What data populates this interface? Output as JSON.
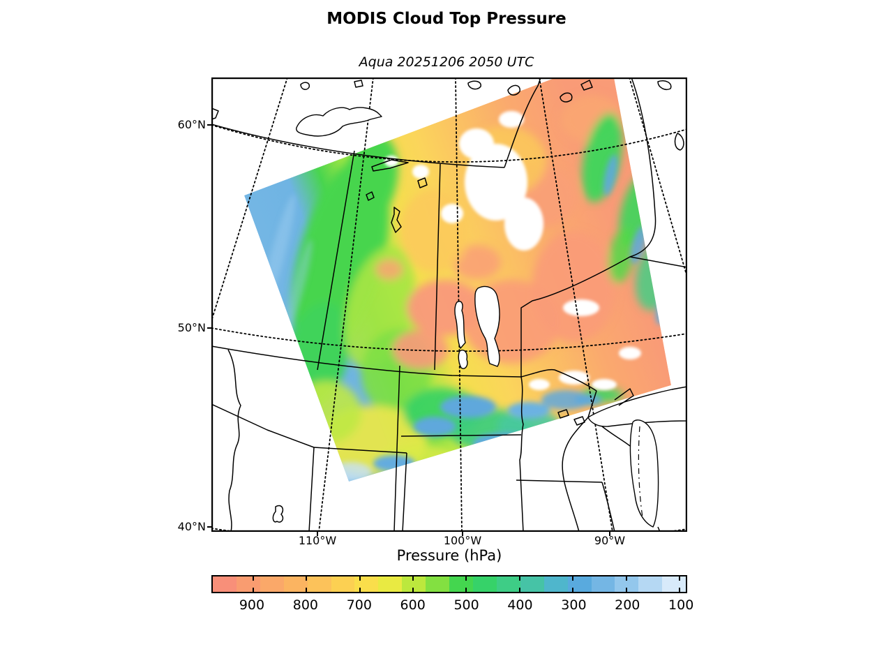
{
  "title": "MODIS Cloud Top Pressure",
  "subtitle": "Aqua 20251206 2050 UTC",
  "map": {
    "lat_ticks": [
      "60°N",
      "50°N",
      "40°N"
    ],
    "lon_ticks": [
      "110°W",
      "100°W",
      "90°W"
    ]
  },
  "colorbar": {
    "label": "Pressure (hPa)",
    "ticks": [
      "900",
      "800",
      "700",
      "600",
      "500",
      "400",
      "300",
      "200",
      "100"
    ],
    "tick_positions_pct": [
      8.5,
      19.78,
      31.06,
      42.33,
      53.61,
      64.88,
      76.16,
      87.43,
      98.71
    ],
    "stops": [
      "#F88F79",
      "#F99C70",
      "#FAA869",
      "#FBB461",
      "#FCC25A",
      "#FCD052",
      "#FADE4B",
      "#E9EA42",
      "#BCE83D",
      "#83E041",
      "#44D64F",
      "#36D269",
      "#3ECD86",
      "#46C3A6",
      "#4FB6CC",
      "#59AADE",
      "#74B6E4",
      "#93C7EC",
      "#B5D8F3",
      "#D8EAFA"
    ]
  },
  "palette": {
    "high_pressure_salmon": "#F99B77",
    "mid_yellow": "#FBD55B",
    "mid_green": "#46D54D",
    "low_pressure_blue": "#6FB4E3",
    "very_low_pale_blue": "#D8EAFA",
    "no_data_white": "#FFFFFF",
    "line_black": "#000000"
  }
}
